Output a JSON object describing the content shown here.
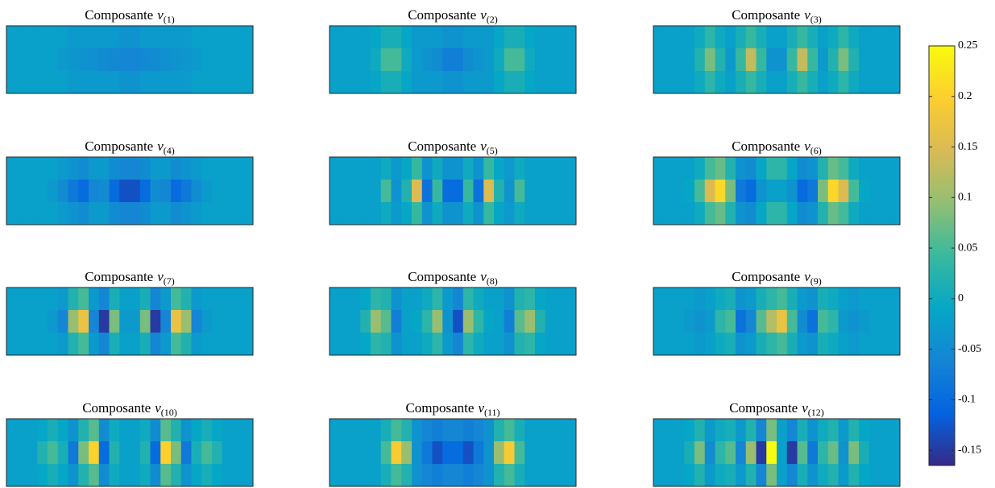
{
  "chart_data": [
    {
      "type": "heatmap",
      "title": "Composante",
      "title_var": "v",
      "title_sub": "(1)",
      "values": [
        [
          -0.02,
          -0.02,
          -0.02,
          -0.02,
          -0.02,
          -0.02,
          -0.03,
          -0.03,
          -0.03,
          -0.03,
          -0.03,
          -0.04,
          -0.04,
          -0.03,
          -0.03,
          -0.03,
          -0.03,
          -0.03,
          -0.02,
          -0.02,
          -0.02,
          -0.02,
          -0.02,
          -0.02
        ],
        [
          -0.02,
          -0.02,
          -0.02,
          -0.02,
          -0.02,
          -0.03,
          -0.035,
          -0.04,
          -0.045,
          -0.05,
          -0.055,
          -0.06,
          -0.06,
          -0.055,
          -0.05,
          -0.045,
          -0.04,
          -0.035,
          -0.03,
          -0.02,
          -0.02,
          -0.02,
          -0.02,
          -0.02
        ],
        [
          -0.02,
          -0.02,
          -0.02,
          -0.02,
          -0.02,
          -0.02,
          -0.03,
          -0.03,
          -0.03,
          -0.03,
          -0.03,
          -0.04,
          -0.04,
          -0.03,
          -0.03,
          -0.03,
          -0.03,
          -0.03,
          -0.02,
          -0.02,
          -0.02,
          -0.02,
          -0.02,
          -0.02
        ]
      ]
    },
    {
      "type": "heatmap",
      "title": "Composante",
      "title_var": "v",
      "title_sub": "(2)",
      "values": [
        [
          -0.02,
          -0.02,
          -0.02,
          -0.02,
          -0.01,
          0.01,
          0.01,
          -0.01,
          -0.03,
          -0.03,
          -0.03,
          -0.04,
          -0.04,
          -0.03,
          -0.03,
          -0.03,
          -0.01,
          0.01,
          0.01,
          -0.01,
          -0.02,
          -0.02,
          -0.02,
          -0.02
        ],
        [
          -0.02,
          -0.02,
          -0.02,
          -0.02,
          0,
          0.05,
          0.05,
          0,
          -0.03,
          -0.04,
          -0.05,
          -0.07,
          -0.07,
          -0.05,
          -0.04,
          -0.03,
          0,
          0.05,
          0.05,
          0,
          -0.02,
          -0.02,
          -0.02,
          -0.02
        ],
        [
          -0.02,
          -0.02,
          -0.02,
          -0.02,
          -0.01,
          0.01,
          0.01,
          -0.01,
          -0.03,
          -0.03,
          -0.03,
          -0.04,
          -0.04,
          -0.03,
          -0.03,
          -0.03,
          -0.01,
          0.01,
          0.01,
          -0.01,
          -0.02,
          -0.02,
          -0.02,
          -0.02
        ]
      ]
    },
    {
      "type": "heatmap",
      "title": "Composante",
      "title_var": "v",
      "title_sub": "(3)",
      "values": [
        [
          -0.02,
          -0.02,
          -0.02,
          -0.02,
          0,
          0.03,
          0,
          -0.02,
          0.01,
          0.04,
          0.01,
          -0.02,
          -0.02,
          0.01,
          0.04,
          0.01,
          -0.02,
          0,
          0.03,
          0,
          -0.02,
          -0.02,
          -0.02,
          -0.02
        ],
        [
          -0.02,
          -0.02,
          -0.02,
          -0.02,
          0.02,
          0.08,
          0.02,
          -0.03,
          0.04,
          0.13,
          0.04,
          -0.04,
          -0.04,
          0.04,
          0.13,
          0.04,
          -0.03,
          0.02,
          0.08,
          0.02,
          -0.02,
          -0.02,
          -0.02,
          -0.02
        ],
        [
          -0.02,
          -0.02,
          -0.02,
          -0.02,
          0,
          0.03,
          0,
          -0.02,
          0.01,
          0.04,
          0.01,
          -0.02,
          -0.02,
          0.01,
          0.04,
          0.01,
          -0.02,
          0,
          0.03,
          0,
          -0.02,
          -0.02,
          -0.02,
          -0.02
        ]
      ]
    },
    {
      "type": "heatmap",
      "title": "Composante",
      "title_var": "v",
      "title_sub": "(4)",
      "values": [
        [
          -0.02,
          -0.02,
          -0.02,
          -0.02,
          -0.02,
          -0.03,
          -0.04,
          -0.05,
          -0.03,
          -0.03,
          -0.05,
          -0.06,
          -0.06,
          -0.05,
          -0.03,
          -0.03,
          -0.05,
          -0.04,
          -0.03,
          -0.02,
          -0.02,
          -0.02,
          -0.02,
          -0.02
        ],
        [
          -0.02,
          -0.02,
          -0.02,
          -0.02,
          -0.03,
          -0.05,
          -0.08,
          -0.1,
          -0.06,
          -0.05,
          -0.1,
          -0.13,
          -0.13,
          -0.1,
          -0.05,
          -0.06,
          -0.1,
          -0.08,
          -0.05,
          -0.03,
          -0.02,
          -0.02,
          -0.02,
          -0.02
        ],
        [
          -0.02,
          -0.02,
          -0.02,
          -0.02,
          -0.02,
          -0.03,
          -0.04,
          -0.05,
          -0.03,
          -0.03,
          -0.05,
          -0.06,
          -0.06,
          -0.05,
          -0.03,
          -0.03,
          -0.05,
          -0.04,
          -0.03,
          -0.02,
          -0.02,
          -0.02,
          -0.02,
          -0.02
        ]
      ]
    },
    {
      "type": "heatmap",
      "title": "Composante",
      "title_var": "v",
      "title_sub": "(5)",
      "values": [
        [
          -0.02,
          -0.02,
          -0.02,
          -0.02,
          -0.02,
          0,
          -0.03,
          -0.01,
          0.04,
          -0.04,
          0,
          -0.04,
          -0.04,
          0,
          -0.04,
          0.04,
          -0.01,
          -0.03,
          0,
          -0.02,
          -0.02,
          -0.02,
          -0.02,
          -0.02
        ],
        [
          -0.02,
          -0.02,
          -0.02,
          -0.02,
          -0.02,
          0.05,
          -0.04,
          0.02,
          0.15,
          -0.09,
          0.04,
          -0.1,
          -0.1,
          0.04,
          -0.09,
          0.15,
          0.02,
          -0.04,
          0.05,
          -0.02,
          -0.02,
          -0.02,
          -0.02,
          -0.02
        ],
        [
          -0.02,
          -0.02,
          -0.02,
          -0.02,
          -0.02,
          0,
          -0.03,
          -0.01,
          0.04,
          -0.04,
          0,
          -0.04,
          -0.04,
          0,
          -0.04,
          0.04,
          -0.01,
          -0.03,
          0,
          -0.02,
          -0.02,
          -0.02,
          -0.02,
          -0.02
        ]
      ]
    },
    {
      "type": "heatmap",
      "title": "Composante",
      "title_var": "v",
      "title_sub": "(6)",
      "values": [
        [
          -0.02,
          -0.02,
          -0.02,
          -0.02,
          0,
          0.05,
          0.07,
          0.02,
          -0.04,
          -0.05,
          -0.01,
          0.03,
          0.03,
          -0.01,
          -0.05,
          -0.04,
          0.02,
          0.07,
          0.05,
          0,
          -0.02,
          -0.02,
          -0.02,
          -0.02
        ],
        [
          -0.02,
          -0.02,
          -0.02,
          -0.01,
          0.05,
          0.15,
          0.21,
          0.08,
          -0.08,
          -0.1,
          -0.04,
          -0.02,
          -0.02,
          -0.04,
          -0.1,
          -0.08,
          0.08,
          0.21,
          0.15,
          0.05,
          -0.01,
          -0.02,
          -0.02,
          -0.02
        ],
        [
          -0.02,
          -0.02,
          -0.02,
          -0.02,
          0,
          0.05,
          0.07,
          0.02,
          -0.04,
          -0.05,
          -0.01,
          0.03,
          0.03,
          -0.01,
          -0.05,
          -0.04,
          0.02,
          0.07,
          0.05,
          0,
          -0.02,
          -0.02,
          -0.02,
          -0.02
        ]
      ]
    },
    {
      "type": "heatmap",
      "title": "Composante",
      "title_var": "v",
      "title_sub": "(7)",
      "values": [
        [
          -0.02,
          -0.02,
          -0.02,
          -0.02,
          -0.02,
          -0.03,
          0.02,
          0.05,
          -0.03,
          -0.06,
          0.01,
          -0.02,
          -0.02,
          0.01,
          -0.06,
          -0.03,
          0.05,
          0.02,
          -0.03,
          -0.02,
          -0.02,
          -0.02,
          -0.02,
          -0.02
        ],
        [
          -0.02,
          -0.02,
          -0.02,
          -0.02,
          -0.03,
          -0.06,
          0.1,
          0.17,
          -0.06,
          -0.15,
          0.08,
          -0.03,
          -0.03,
          0.08,
          -0.15,
          -0.06,
          0.17,
          0.1,
          -0.06,
          -0.03,
          -0.02,
          -0.02,
          -0.02,
          -0.02
        ],
        [
          -0.02,
          -0.02,
          -0.02,
          -0.02,
          -0.02,
          -0.03,
          0.02,
          0.05,
          -0.03,
          -0.06,
          0.01,
          -0.02,
          -0.02,
          0.01,
          -0.06,
          -0.03,
          0.05,
          0.02,
          -0.03,
          -0.02,
          -0.02,
          -0.02,
          -0.02,
          -0.02
        ]
      ]
    },
    {
      "type": "heatmap",
      "title": "Composante",
      "title_var": "v",
      "title_sub": "(8)",
      "values": [
        [
          -0.02,
          -0.02,
          -0.02,
          -0.01,
          0.03,
          0.02,
          -0.04,
          -0.02,
          -0.02,
          0,
          0.03,
          -0.03,
          -0.06,
          0.03,
          0,
          -0.02,
          -0.02,
          -0.04,
          0.02,
          0.03,
          -0.01,
          -0.02,
          -0.02,
          -0.02
        ],
        [
          -0.02,
          -0.02,
          -0.02,
          0.02,
          0.1,
          0.06,
          -0.07,
          -0.02,
          -0.01,
          0.03,
          0.1,
          -0.04,
          -0.13,
          0.1,
          0.03,
          -0.01,
          -0.02,
          -0.07,
          0.06,
          0.1,
          0.02,
          -0.02,
          -0.02,
          -0.02
        ],
        [
          -0.02,
          -0.02,
          -0.02,
          -0.01,
          0.03,
          0.02,
          -0.04,
          -0.02,
          -0.02,
          0,
          0.03,
          -0.03,
          -0.06,
          0.03,
          0,
          -0.02,
          -0.02,
          -0.04,
          0.02,
          0.03,
          -0.01,
          -0.02,
          -0.02,
          -0.02
        ]
      ]
    },
    {
      "type": "heatmap",
      "title": "Composante",
      "title_var": "v",
      "title_sub": "(9)",
      "values": [
        [
          -0.02,
          -0.02,
          -0.02,
          -0.02,
          -0.03,
          -0.02,
          0,
          0.01,
          -0.04,
          -0.03,
          0.01,
          0.03,
          0.05,
          0.01,
          -0.03,
          -0.04,
          0.01,
          0,
          -0.02,
          -0.03,
          -0.02,
          -0.02,
          -0.02,
          -0.02
        ],
        [
          -0.02,
          -0.02,
          -0.02,
          -0.03,
          -0.04,
          -0.03,
          0.03,
          0.05,
          -0.09,
          -0.06,
          0.06,
          0.12,
          0.17,
          0.05,
          -0.05,
          -0.09,
          0.05,
          0.03,
          -0.03,
          -0.04,
          -0.03,
          -0.02,
          -0.02,
          -0.02
        ],
        [
          -0.02,
          -0.02,
          -0.02,
          -0.02,
          -0.03,
          -0.02,
          0,
          0.01,
          -0.04,
          -0.03,
          0.01,
          0.03,
          0.05,
          0.01,
          -0.03,
          -0.04,
          0.01,
          0,
          -0.02,
          -0.03,
          -0.02,
          -0.02,
          -0.02,
          -0.02
        ]
      ]
    },
    {
      "type": "heatmap",
      "title": "Composante",
      "title_var": "v",
      "title_sub": "(10)",
      "values": [
        [
          -0.02,
          -0.02,
          -0.02,
          -0.01,
          0.01,
          -0.01,
          -0.04,
          0.02,
          0.06,
          -0.05,
          0,
          -0.02,
          -0.02,
          0,
          -0.05,
          0.06,
          0.02,
          -0.04,
          -0.01,
          0.01,
          -0.01,
          -0.02,
          -0.02,
          -0.02
        ],
        [
          -0.02,
          -0.02,
          -0.02,
          0.02,
          0.05,
          0.01,
          -0.08,
          0.08,
          0.2,
          -0.1,
          0.02,
          -0.02,
          -0.02,
          0.02,
          -0.1,
          0.2,
          0.08,
          -0.08,
          0.01,
          0.05,
          0.02,
          -0.02,
          -0.02,
          -0.02
        ],
        [
          -0.02,
          -0.02,
          -0.02,
          -0.01,
          0.01,
          -0.01,
          -0.04,
          0.02,
          0.06,
          -0.05,
          0,
          -0.02,
          -0.02,
          0,
          -0.05,
          0.06,
          0.02,
          -0.04,
          -0.01,
          0.01,
          -0.01,
          -0.02,
          -0.02,
          -0.02
        ]
      ]
    },
    {
      "type": "heatmap",
      "title": "Composante",
      "title_var": "v",
      "title_sub": "(11)",
      "values": [
        [
          -0.02,
          -0.02,
          -0.02,
          -0.02,
          -0.02,
          0.01,
          0.05,
          0.02,
          -0.04,
          -0.06,
          -0.07,
          -0.06,
          -0.06,
          -0.07,
          -0.06,
          -0.04,
          0.02,
          0.05,
          0.01,
          -0.02,
          -0.02,
          -0.02,
          -0.02,
          -0.02
        ],
        [
          -0.02,
          -0.02,
          -0.02,
          -0.02,
          -0.02,
          0.05,
          0.19,
          0.1,
          -0.04,
          -0.08,
          -0.13,
          -0.1,
          -0.1,
          -0.13,
          -0.08,
          -0.04,
          0.1,
          0.19,
          0.05,
          -0.02,
          -0.02,
          -0.02,
          -0.02,
          -0.02
        ],
        [
          -0.02,
          -0.02,
          -0.02,
          -0.02,
          -0.02,
          0.01,
          0.05,
          0.02,
          -0.04,
          -0.06,
          -0.07,
          -0.06,
          -0.06,
          -0.07,
          -0.06,
          -0.04,
          0.02,
          0.05,
          0.01,
          -0.02,
          -0.02,
          -0.02,
          -0.02,
          -0.02
        ]
      ]
    },
    {
      "type": "heatmap",
      "title": "Composante",
      "title_var": "v",
      "title_sub": "(12)",
      "values": [
        [
          -0.02,
          -0.02,
          -0.02,
          -0.01,
          0.02,
          -0.03,
          0,
          0.01,
          -0.03,
          0.02,
          -0.06,
          0.08,
          -0.02,
          -0.06,
          0.01,
          -0.04,
          0,
          0.02,
          -0.03,
          0.02,
          -0.01,
          -0.02,
          -0.02,
          -0.02
        ],
        [
          -0.02,
          -0.02,
          -0.02,
          0.01,
          0.08,
          -0.05,
          0.03,
          0.06,
          -0.06,
          0.1,
          -0.15,
          0.25,
          -0.02,
          -0.15,
          0.06,
          -0.08,
          0.03,
          0.07,
          -0.04,
          0.08,
          0.01,
          -0.02,
          -0.02,
          -0.02
        ],
        [
          -0.02,
          -0.02,
          -0.02,
          -0.01,
          0.02,
          -0.03,
          0,
          0.01,
          -0.03,
          0.02,
          -0.06,
          0.08,
          -0.02,
          -0.06,
          0.01,
          -0.04,
          0,
          0.02,
          -0.03,
          0.02,
          -0.01,
          -0.02,
          -0.02,
          -0.02
        ]
      ]
    }
  ],
  "colorbar": {
    "clim": [
      -0.165,
      0.25
    ],
    "ticks": [
      -0.15,
      -0.1,
      -0.05,
      0,
      0.05,
      0.1,
      0.15,
      0.2,
      0.25
    ],
    "colormap": [
      "#352a87",
      "#0363e1",
      "#1485d4",
      "#06a7c6",
      "#38b99e",
      "#92bf73",
      "#d9ba56",
      "#fcce2e",
      "#f9fb0e"
    ]
  }
}
